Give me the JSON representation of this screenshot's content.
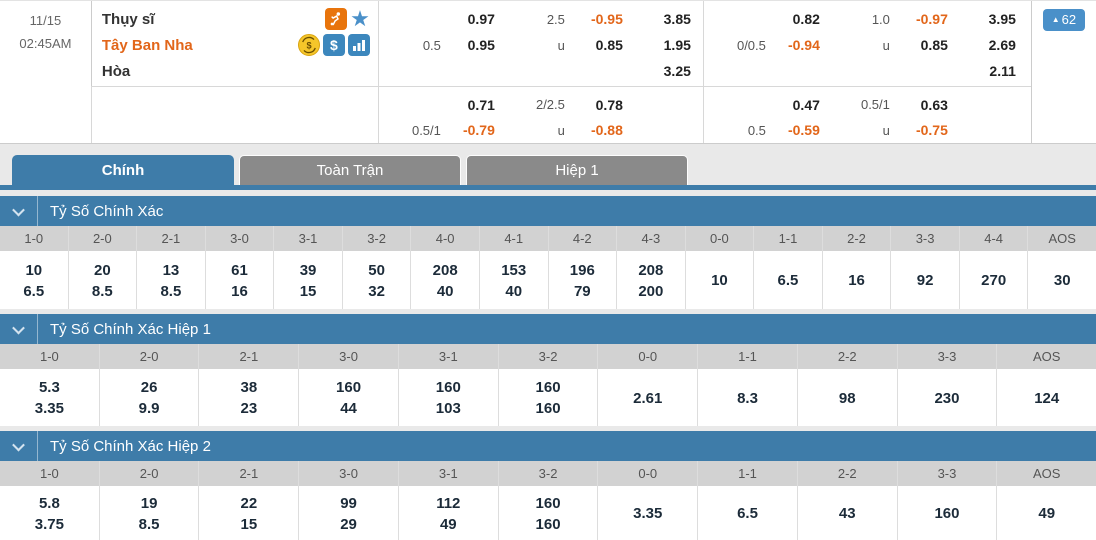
{
  "colors": {
    "accent_blue": "#3e7ca9",
    "badge_blue": "#4a90c9",
    "orange": "#e2661a",
    "tab_gray": "#8a8a8a",
    "header_gray": "#d2d2d2"
  },
  "match": {
    "date": "11/15",
    "time": "02:45AM",
    "home_team": "Thụy sĩ",
    "away_team": "Tây Ban Nha",
    "draw_label": "Hòa",
    "more_odds_count": "62",
    "more_odds_arrow": "▲",
    "icons": {
      "sport": "soccer-icon",
      "favorite": "star-icon",
      "cashout": "coin-icon",
      "money": "dollar-icon",
      "stats": "bar-chart-icon"
    }
  },
  "odds": {
    "u_label": "u",
    "fulltime": {
      "left": {
        "hdp_line": "0.5",
        "hdp_home": "0.97",
        "hdp_away": "0.95",
        "ou_line": "2.5",
        "ou_over": "-0.95",
        "ou_under": "0.85",
        "win_home": "3.85",
        "win_away": "1.95",
        "win_draw": "3.25"
      },
      "right": {
        "hdp_line": "0/0.5",
        "hdp_home": "0.82",
        "hdp_away": "-0.94",
        "ou_line": "1.0",
        "ou_over": "-0.97",
        "ou_under": "0.85",
        "win_home": "3.95",
        "win_away": "2.69",
        "win_draw": "2.11"
      }
    },
    "halftime": {
      "left": {
        "hdp_line": "0.5/1",
        "hdp_home": "0.71",
        "hdp_away": "-0.79",
        "ou_line": "2/2.5",
        "ou_over": "0.78",
        "ou_under": "-0.88"
      },
      "right": {
        "hdp_line": "0.5",
        "hdp_home": "0.47",
        "hdp_away": "-0.59",
        "ou_line": "0.5/1",
        "ou_over": "0.63",
        "ou_under": "-0.75"
      }
    }
  },
  "tabs": [
    {
      "label": "Chính",
      "active": true
    },
    {
      "label": "Toàn Trận",
      "active": false
    },
    {
      "label": "Hiệp 1",
      "active": false
    }
  ],
  "chart_data": [
    {
      "type": "table",
      "title": "Tỷ Số Chính Xác",
      "categories": [
        "1-0",
        "2-0",
        "2-1",
        "3-0",
        "3-1",
        "3-2",
        "4-0",
        "4-1",
        "4-2",
        "4-3",
        "0-0",
        "1-1",
        "2-2",
        "3-3",
        "4-4",
        "AOS"
      ],
      "values": [
        [
          "10",
          "6.5"
        ],
        [
          "20",
          "8.5"
        ],
        [
          "13",
          "8.5"
        ],
        [
          "61",
          "16"
        ],
        [
          "39",
          "15"
        ],
        [
          "50",
          "32"
        ],
        [
          "208",
          "40"
        ],
        [
          "153",
          "40"
        ],
        [
          "196",
          "79"
        ],
        [
          "208",
          "200"
        ],
        [
          "10"
        ],
        [
          "6.5"
        ],
        [
          "16"
        ],
        [
          "92"
        ],
        [
          "270"
        ],
        [
          "30"
        ]
      ]
    },
    {
      "type": "table",
      "title": "Tỷ Số Chính Xác Hiệp 1",
      "categories": [
        "1-0",
        "2-0",
        "2-1",
        "3-0",
        "3-1",
        "3-2",
        "0-0",
        "1-1",
        "2-2",
        "3-3",
        "AOS"
      ],
      "values": [
        [
          "5.3",
          "3.35"
        ],
        [
          "26",
          "9.9"
        ],
        [
          "38",
          "23"
        ],
        [
          "160",
          "44"
        ],
        [
          "160",
          "103"
        ],
        [
          "160",
          "160"
        ],
        [
          "2.61"
        ],
        [
          "8.3"
        ],
        [
          "98"
        ],
        [
          "230"
        ],
        [
          "124"
        ]
      ]
    },
    {
      "type": "table",
      "title": "Tỷ Số Chính Xác Hiệp 2",
      "categories": [
        "1-0",
        "2-0",
        "2-1",
        "3-0",
        "3-1",
        "3-2",
        "0-0",
        "1-1",
        "2-2",
        "3-3",
        "AOS"
      ],
      "values": [
        [
          "5.8",
          "3.75"
        ],
        [
          "19",
          "8.5"
        ],
        [
          "22",
          "15"
        ],
        [
          "99",
          "29"
        ],
        [
          "112",
          "49"
        ],
        [
          "160",
          "160"
        ],
        [
          "3.35"
        ],
        [
          "6.5"
        ],
        [
          "43"
        ],
        [
          "160"
        ],
        [
          "49"
        ]
      ]
    }
  ]
}
